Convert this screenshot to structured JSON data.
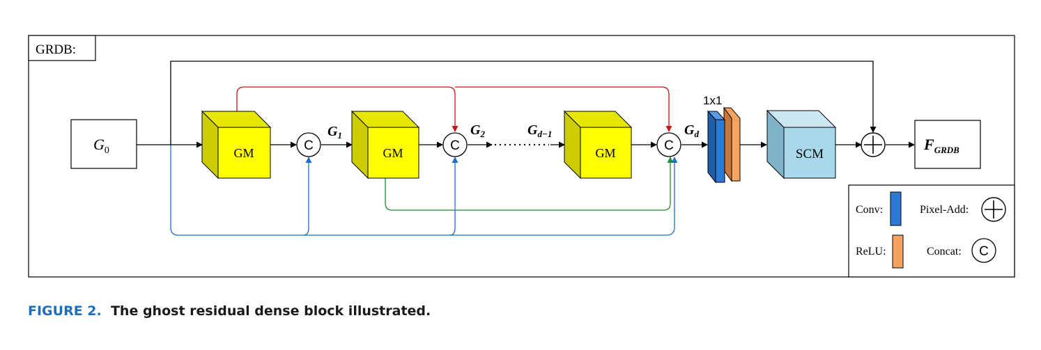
{
  "frame": {
    "label": "GRDB:"
  },
  "nodes": {
    "input": {
      "base": "G",
      "sub": "0"
    },
    "output": {
      "base": "F",
      "sub": "GRDB"
    },
    "gm_label": "GM",
    "scm_label": "SCM",
    "concat_symbol": "C",
    "conv_kernel": "1x1"
  },
  "features": [
    {
      "base": "G",
      "sub": "1"
    },
    {
      "base": "G",
      "sub": "2"
    },
    {
      "base": "G",
      "sub": "d−1"
    },
    {
      "base": "G",
      "sub": "d"
    }
  ],
  "legend": {
    "conv": "Conv:",
    "relu": "ReLU:",
    "pixel_add": "Pixel-Add:",
    "concat": "Concat:"
  },
  "colors": {
    "gm_front": "#ffff00",
    "gm_side": "#cccc00",
    "gm_top": "#e6e600",
    "scm_front": "#a8d8ea",
    "scm_side": "#7fb3c8",
    "scm_top": "#cbe7f2",
    "conv": "#2b7bd6",
    "relu": "#f4a460",
    "red_link": "#cc1111",
    "green_link": "#228833",
    "blue_link": "#1a6fc0"
  },
  "caption": {
    "figure": "FIGURE 2.",
    "text": "The ghost residual dense block illustrated."
  }
}
